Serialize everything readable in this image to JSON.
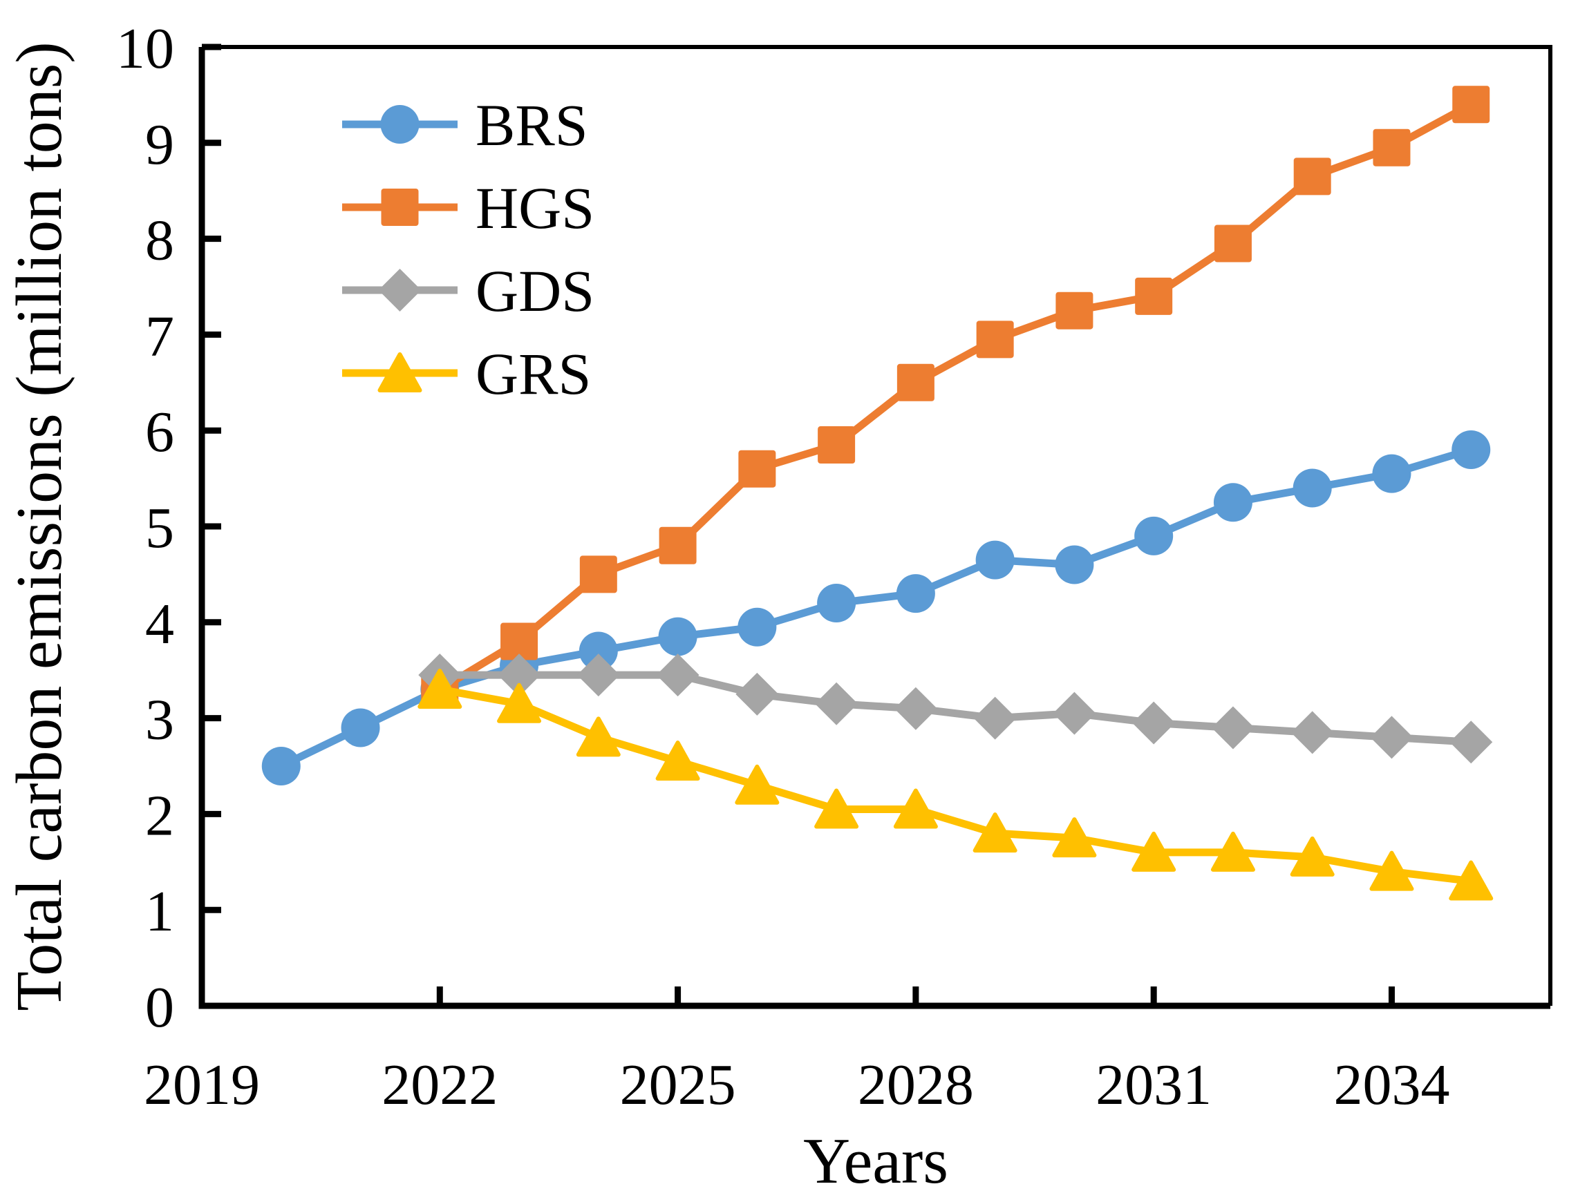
{
  "chart_data": {
    "type": "line",
    "title": "",
    "xlabel": "Years",
    "ylabel": "Total carbon emissions (million tons)",
    "xlim": [
      2019,
      2036
    ],
    "ylim": [
      0,
      10
    ],
    "x_ticks": [
      2019,
      2022,
      2025,
      2028,
      2031,
      2034
    ],
    "y_ticks": [
      0,
      1,
      2,
      3,
      4,
      5,
      6,
      7,
      8,
      9,
      10
    ],
    "grid": false,
    "legend_position": "upper-left-inside",
    "axis_color": "#000000",
    "background_color": "#ffffff",
    "series": [
      {
        "name": "BRS",
        "marker": "circle",
        "color": "#5B9BD5",
        "points": [
          [
            2020,
            2.5
          ],
          [
            2021,
            2.9
          ],
          [
            2022,
            3.3
          ],
          [
            2023,
            3.55
          ],
          [
            2024,
            3.7
          ],
          [
            2025,
            3.85
          ],
          [
            2026,
            3.95
          ],
          [
            2027,
            4.2
          ],
          [
            2028,
            4.3
          ],
          [
            2029,
            4.65
          ],
          [
            2030,
            4.6
          ],
          [
            2031,
            4.9
          ],
          [
            2032,
            5.25
          ],
          [
            2033,
            5.4
          ],
          [
            2034,
            5.55
          ],
          [
            2035,
            5.8
          ]
        ]
      },
      {
        "name": "HGS",
        "marker": "square",
        "color": "#ED7D31",
        "points": [
          [
            2022,
            3.3
          ],
          [
            2023,
            3.8
          ],
          [
            2024,
            4.5
          ],
          [
            2025,
            4.8
          ],
          [
            2026,
            5.6
          ],
          [
            2027,
            5.85
          ],
          [
            2028,
            6.5
          ],
          [
            2029,
            6.95
          ],
          [
            2030,
            7.25
          ],
          [
            2031,
            7.4
          ],
          [
            2032,
            7.95
          ],
          [
            2033,
            8.65
          ],
          [
            2034,
            8.95
          ],
          [
            2035,
            9.4
          ]
        ]
      },
      {
        "name": "GDS",
        "marker": "diamond",
        "color": "#A5A5A5",
        "points": [
          [
            2022,
            3.45
          ],
          [
            2023,
            3.45
          ],
          [
            2024,
            3.45
          ],
          [
            2025,
            3.45
          ],
          [
            2026,
            3.25
          ],
          [
            2027,
            3.15
          ],
          [
            2028,
            3.1
          ],
          [
            2029,
            3.0
          ],
          [
            2030,
            3.05
          ],
          [
            2031,
            2.95
          ],
          [
            2032,
            2.9
          ],
          [
            2033,
            2.85
          ],
          [
            2034,
            2.8
          ],
          [
            2035,
            2.75
          ]
        ]
      },
      {
        "name": "GRS",
        "marker": "triangle",
        "color": "#FFC000",
        "points": [
          [
            2022,
            3.3
          ],
          [
            2023,
            3.15
          ],
          [
            2024,
            2.8
          ],
          [
            2025,
            2.55
          ],
          [
            2026,
            2.3
          ],
          [
            2027,
            2.05
          ],
          [
            2028,
            2.05
          ],
          [
            2029,
            1.8
          ],
          [
            2030,
            1.75
          ],
          [
            2031,
            1.6
          ],
          [
            2032,
            1.6
          ],
          [
            2033,
            1.55
          ],
          [
            2034,
            1.4
          ],
          [
            2035,
            1.3
          ]
        ]
      }
    ]
  }
}
